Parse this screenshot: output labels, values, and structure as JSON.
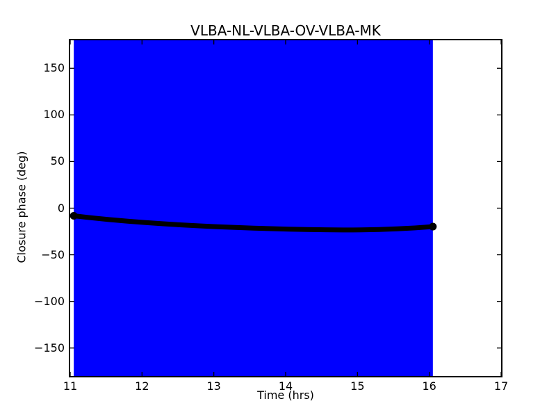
{
  "figure": {
    "background": "#ffffff"
  },
  "chart_data": {
    "type": "line",
    "title": "VLBA-NL-VLBA-OV-VLBA-MK",
    "xlabel": "Time (hrs)",
    "ylabel": "Closure phase (deg)",
    "xlim": [
      11,
      17
    ],
    "ylim": [
      -180,
      180
    ],
    "xticks": [
      11,
      12,
      13,
      14,
      15,
      16,
      17
    ],
    "yticks": [
      -150,
      -100,
      -50,
      0,
      50,
      100,
      150
    ],
    "grid": false,
    "legend": null,
    "tick_style": "inward-all-spines",
    "error_band": {
      "color": "#0000ff",
      "x_span": [
        11.05,
        16.05
      ],
      "y_span": [
        -180,
        180
      ]
    },
    "series": [
      {
        "name": "closure phase",
        "color": "#000000",
        "line_width": 7,
        "marker": "circle",
        "x": [
          11.05,
          11.3,
          11.55,
          11.8,
          12.05,
          12.3,
          12.55,
          12.8,
          13.05,
          13.3,
          13.55,
          13.8,
          14.05,
          14.3,
          14.55,
          14.8,
          15.05,
          15.3,
          15.55,
          15.8,
          16.05
        ],
        "y": [
          -8.2,
          -10.4,
          -12.3,
          -14.0,
          -15.5,
          -16.8,
          -18.0,
          -19.0,
          -19.9,
          -20.7,
          -21.4,
          -22.0,
          -22.5,
          -22.9,
          -23.2,
          -23.4,
          -23.3,
          -22.9,
          -22.2,
          -21.2,
          -19.8
        ]
      }
    ],
    "colors": {
      "band": "#0000ff",
      "line": "#000000",
      "axis": "#000000",
      "background": "#ffffff"
    }
  }
}
